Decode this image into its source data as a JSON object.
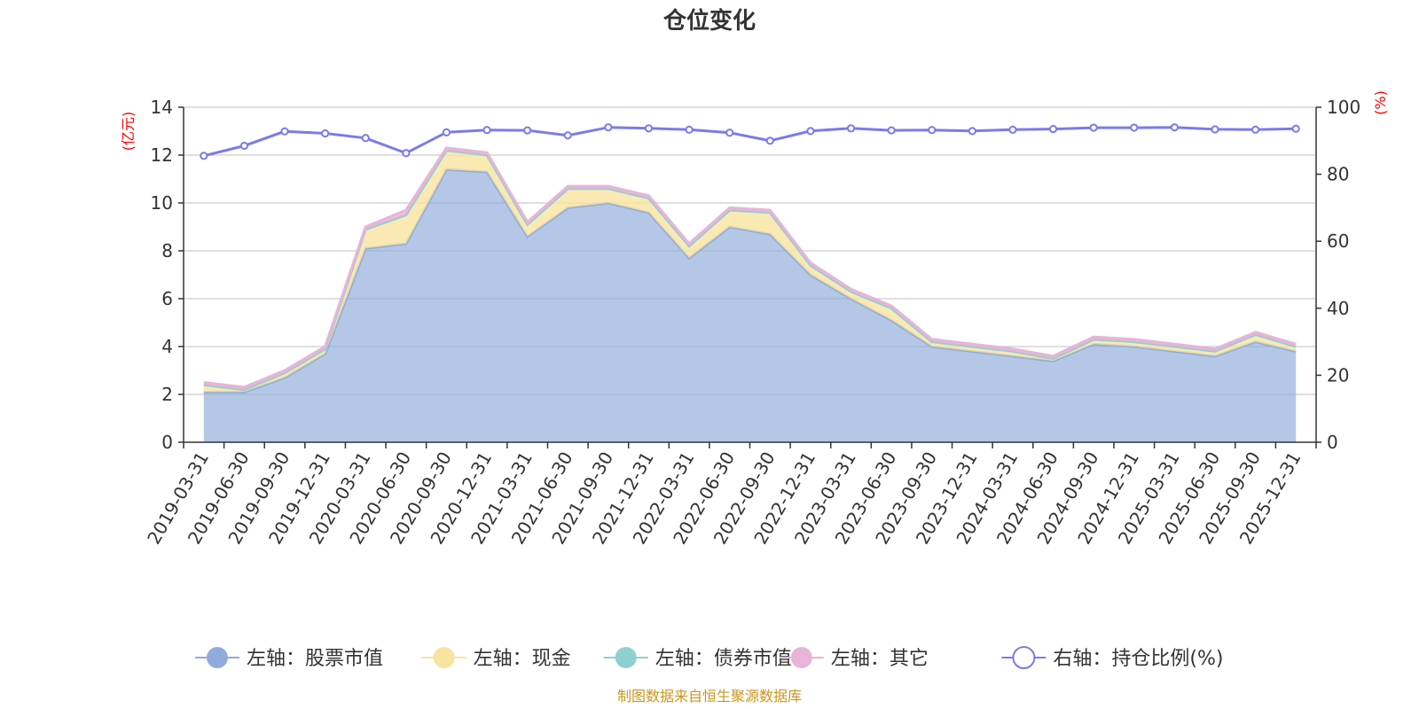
{
  "chart_data": {
    "type": "area",
    "title": "仓位变化",
    "left_axis": {
      "unit": "(亿元)",
      "ylim": [
        0,
        14
      ],
      "ticks": [
        0,
        2,
        4,
        6,
        8,
        10,
        12,
        14
      ]
    },
    "right_axis": {
      "unit": "(%)",
      "ylim": [
        0,
        100
      ],
      "ticks": [
        0,
        20,
        40,
        60,
        80,
        100
      ]
    },
    "categories": [
      "2019-03-31",
      "2019-06-30",
      "2019-09-30",
      "2019-12-31",
      "2020-03-31",
      "2020-06-30",
      "2020-09-30",
      "2020-12-31",
      "2021-03-31",
      "2021-06-30",
      "2021-09-30",
      "2021-12-31",
      "2022-03-31",
      "2022-06-30",
      "2022-09-30",
      "2022-12-31",
      "2023-03-31",
      "2023-06-30",
      "2023-09-30",
      "2023-12-31",
      "2024-03-31",
      "2024-06-30",
      "2024-09-30",
      "2024-12-31",
      "2025-03-31",
      "2025-06-30",
      "2025-09-30",
      "2025-12-31"
    ],
    "series": [
      {
        "name": "左轴：股票市值",
        "axis": "left",
        "kind": "stacked-area",
        "color": "#91acdc",
        "values": [
          2.1,
          2.1,
          2.7,
          3.7,
          8.1,
          8.3,
          11.4,
          11.3,
          8.6,
          9.8,
          10.0,
          9.6,
          7.7,
          9.0,
          8.7,
          7.0,
          6.0,
          5.1,
          4.0,
          3.8,
          3.6,
          3.4,
          4.1,
          4.0,
          3.8,
          3.6,
          4.2,
          3.8
        ]
      },
      {
        "name": "左轴：现金",
        "axis": "left",
        "kind": "stacked-area",
        "color": "#f9e3a0",
        "values": [
          0.3,
          0.1,
          0.2,
          0.2,
          0.8,
          1.2,
          0.8,
          0.7,
          0.5,
          0.8,
          0.6,
          0.6,
          0.5,
          0.7,
          0.9,
          0.4,
          0.3,
          0.5,
          0.2,
          0.2,
          0.2,
          0.1,
          0.2,
          0.2,
          0.2,
          0.2,
          0.3,
          0.2
        ]
      },
      {
        "name": "左轴：债券市值",
        "axis": "left",
        "kind": "stacked-area",
        "color": "#8ed0cf",
        "values": [
          0,
          0,
          0,
          0,
          0,
          0,
          0,
          0,
          0,
          0,
          0,
          0,
          0,
          0,
          0,
          0,
          0,
          0,
          0,
          0,
          0,
          0,
          0,
          0,
          0,
          0,
          0,
          0
        ]
      },
      {
        "name": "左轴：其它",
        "axis": "left",
        "kind": "stacked-area",
        "color": "#e8b4d8",
        "values": [
          0.1,
          0.1,
          0.1,
          0.1,
          0.1,
          0.2,
          0.1,
          0.1,
          0.1,
          0.1,
          0.1,
          0.1,
          0.1,
          0.1,
          0.1,
          0.1,
          0.1,
          0.1,
          0.1,
          0.1,
          0.1,
          0.1,
          0.1,
          0.1,
          0.1,
          0.1,
          0.1,
          0.1
        ]
      },
      {
        "name": "右轴：持仓比例(%)",
        "axis": "right",
        "kind": "line",
        "color": "#7b7bea",
        "values": [
          85.5,
          88.5,
          92.8,
          92.2,
          90.8,
          86.3,
          92.5,
          93.2,
          93.1,
          91.6,
          94.0,
          93.7,
          93.3,
          92.4,
          90.0,
          92.9,
          93.7,
          93.1,
          93.2,
          92.9,
          93.3,
          93.5,
          93.9,
          93.9,
          94.0,
          93.4,
          93.3,
          93.6
        ]
      }
    ],
    "legend_position": "bottom",
    "grid": true,
    "source": "制图数据来自恒生聚源数据库"
  }
}
